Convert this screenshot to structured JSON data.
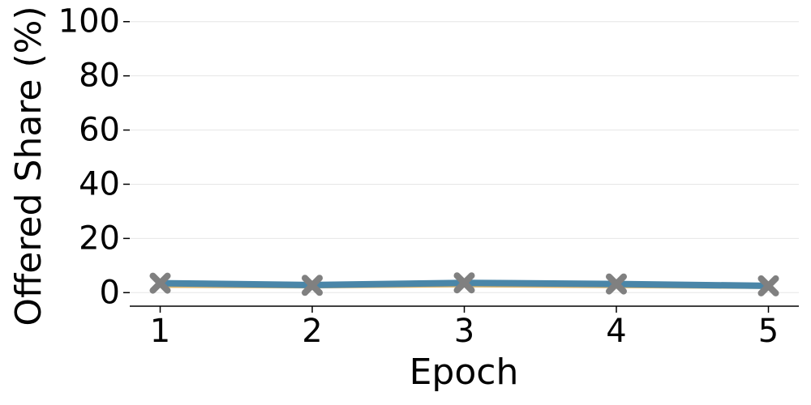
{
  "chart_data": {
    "type": "line",
    "title": "",
    "xlabel": "Epoch",
    "ylabel": "Offered Share (%)",
    "x": [
      1,
      2,
      3,
      4,
      5
    ],
    "xticks": [
      "1",
      "2",
      "3",
      "4",
      "5"
    ],
    "yticks": [
      "0",
      "20",
      "40",
      "60",
      "80",
      "100"
    ],
    "xlim": [
      0.8,
      5.2
    ],
    "ylim": [
      -5,
      105
    ],
    "grid": "horizontal",
    "legend": "none",
    "series": [
      {
        "values": [
          2.2,
          2.0,
          2.4,
          2.1,
          1.8
        ],
        "color": "#d9b36a",
        "marker": "none"
      },
      {
        "values": [
          3.5,
          2.8,
          3.6,
          3.2,
          2.5
        ],
        "color": "#4a86a8",
        "marker": "none"
      },
      {
        "values": [
          3.5,
          2.7,
          3.6,
          3.2,
          2.5
        ],
        "color": "#808080",
        "marker": "x"
      }
    ]
  }
}
